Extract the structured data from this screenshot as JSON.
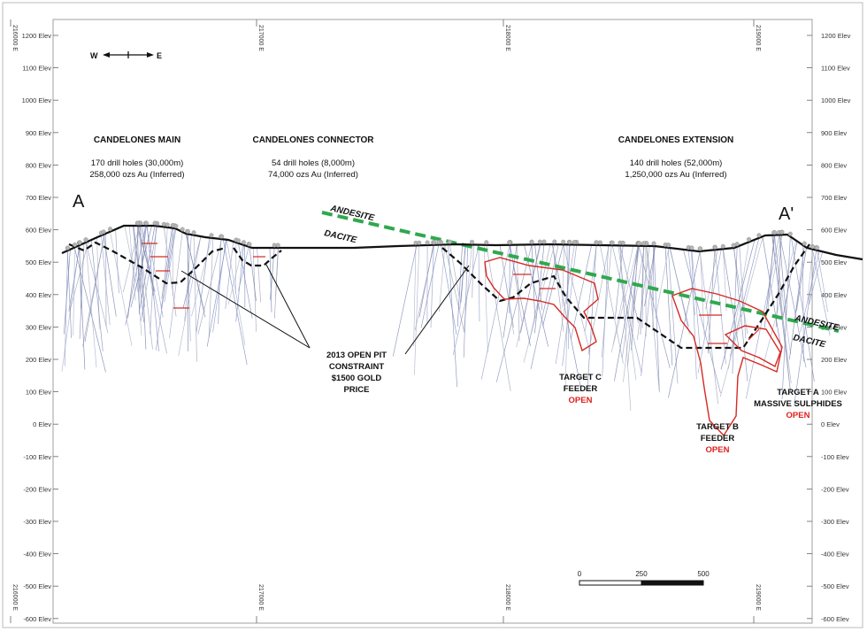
{
  "elevation_labels": [
    "1200 Elev",
    "1100 Elev",
    "1000 Elev",
    "900 Elev",
    "800 Elev",
    "700 Elev",
    "600 Elev",
    "500 Elev",
    "400 Elev",
    "300 Elev",
    "200 Elev",
    "100 Elev",
    "0 Elev",
    "-100 Elev",
    "-200 Elev",
    "-300 Elev",
    "-400 Elev",
    "-500 Elev",
    "-600 Elev"
  ],
  "easting_labels": [
    "216000 E",
    "217000 E",
    "218000 E",
    "219000 E"
  ],
  "compass": {
    "west": "W",
    "east": "E",
    "icon": "west-east-arrow-icon"
  },
  "section": {
    "start": "A",
    "end": "A'"
  },
  "zones": [
    {
      "title": "CANDELONES MAIN",
      "line1": "170 drill holes (30,000m)",
      "line2": "258,000 ozs Au (Inferred)"
    },
    {
      "title": "CANDELONES CONNECTOR",
      "line1": "54 drill holes (8,000m)",
      "line2": "74,000 ozs Au (Inferred)"
    },
    {
      "title": "CANDELONES EXTENSION",
      "line1": "140 drill holes (52,000m)",
      "line2": "1,250,000 ozs Au (Inferred)"
    }
  ],
  "units": {
    "upper": "ANDESITE",
    "lower": "DACITE"
  },
  "pit_callout": [
    "2013 OPEN PIT",
    "CONSTRAINT",
    "$1500  GOLD",
    "PRICE"
  ],
  "targets": {
    "c": {
      "line1": "TARGET C",
      "line2": "FEEDER",
      "status": "OPEN"
    },
    "b": {
      "line1": "TARGET B",
      "line2": "FEEDER",
      "status": "OPEN"
    },
    "a": {
      "line1": "TARGET A",
      "line2": "MASSIVE SULPHIDES",
      "status": "OPEN"
    }
  },
  "scale_bar": {
    "labels": [
      "0",
      "250",
      "500"
    ]
  },
  "colors": {
    "topography": "#111111",
    "contact": "#2fa84f",
    "pit": "#111111",
    "target": "#d42a23",
    "drillhole": "#7a86b8",
    "open_text": "#e0201c"
  }
}
